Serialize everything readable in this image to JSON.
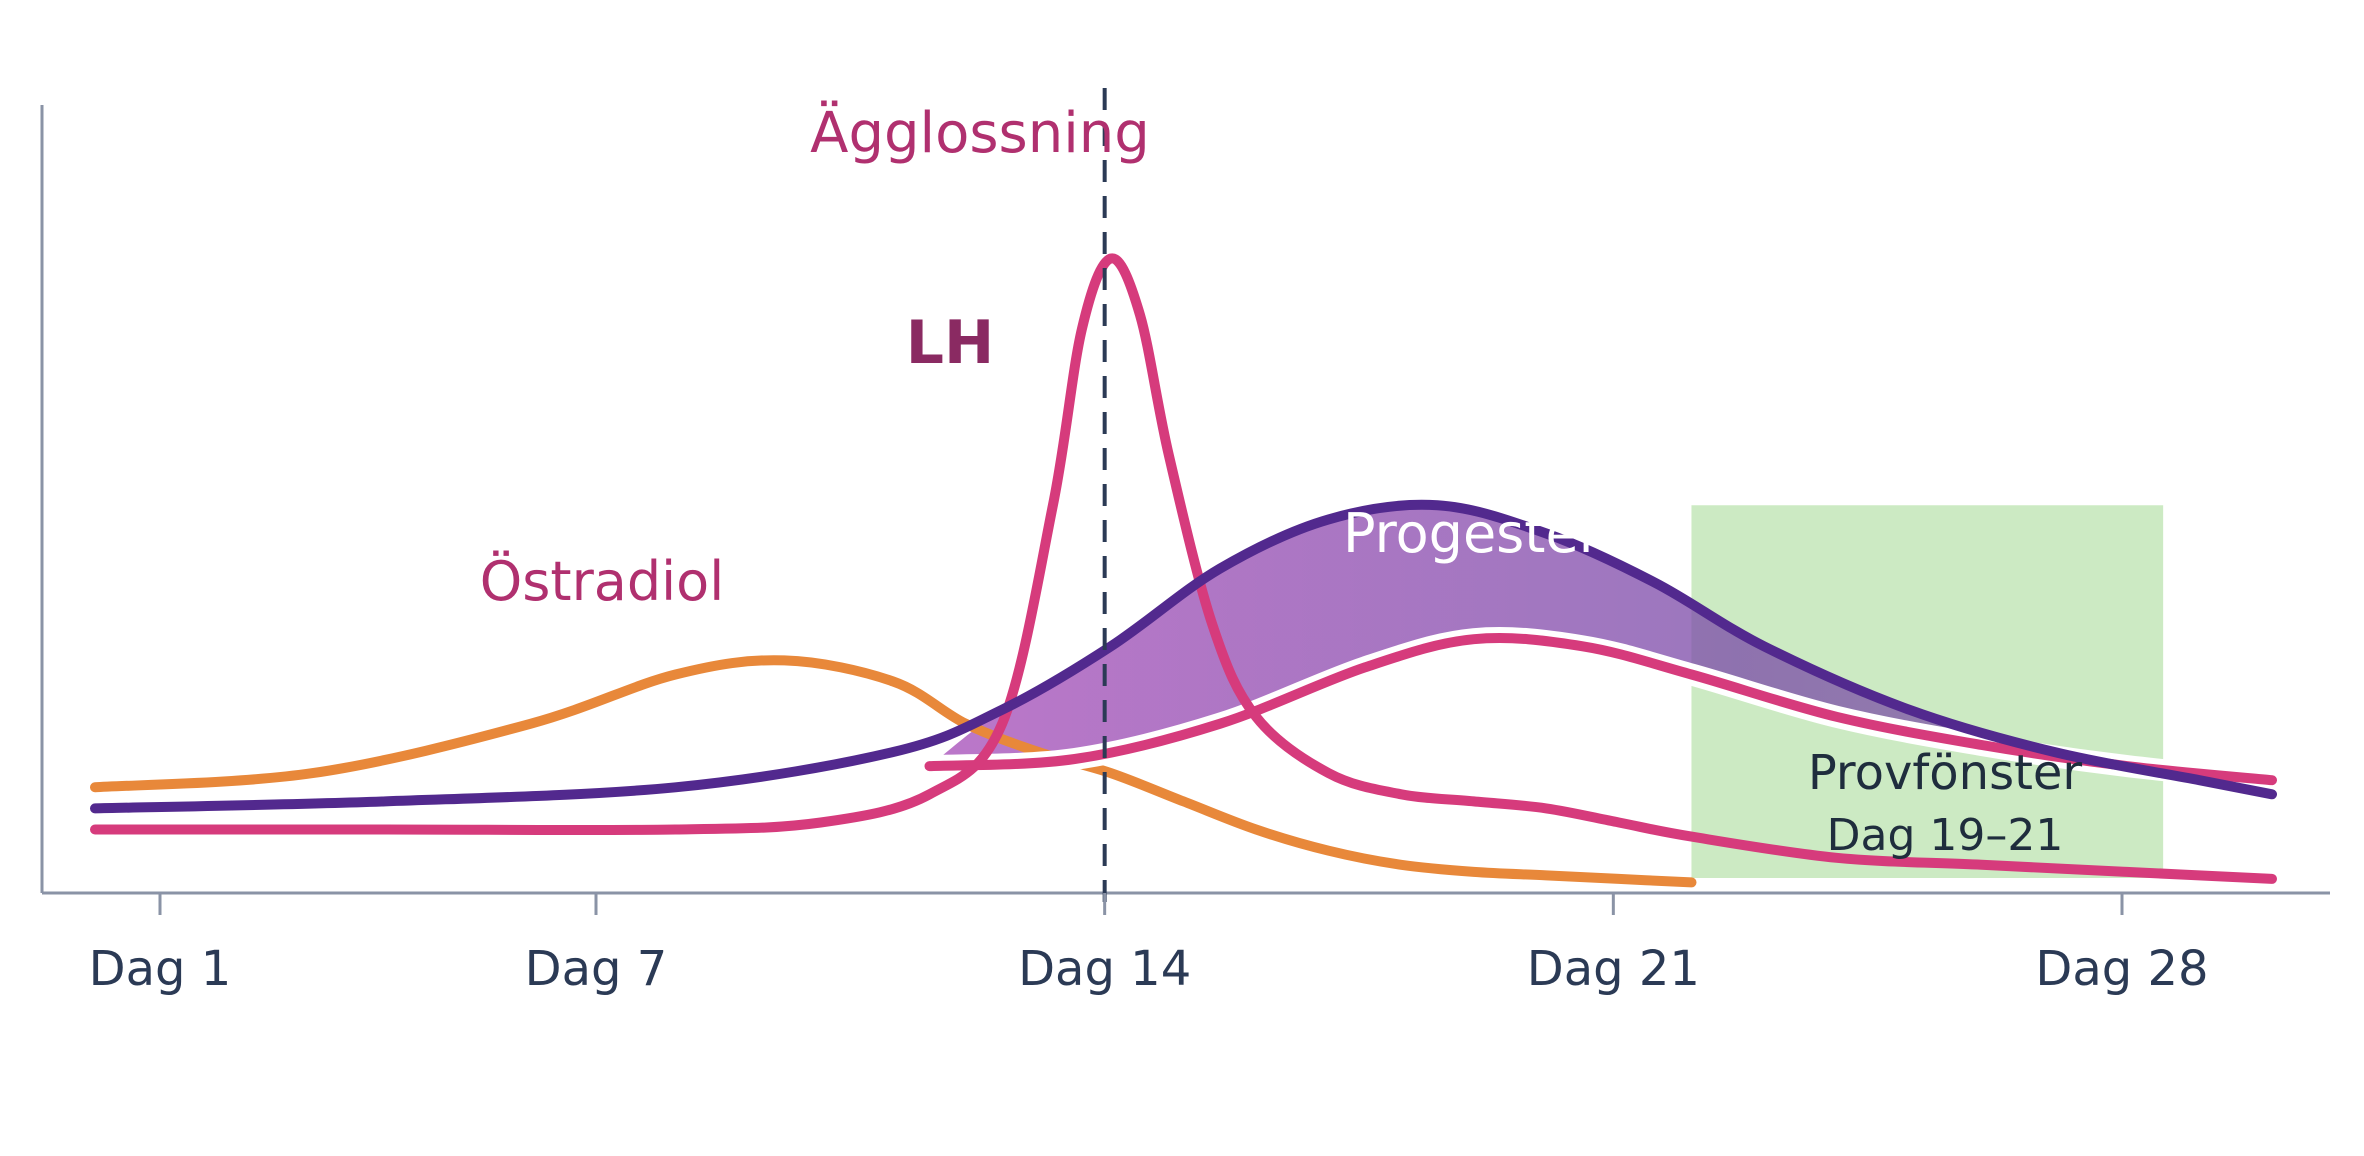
{
  "chart_data": {
    "type": "line",
    "title": "",
    "xlabel": "",
    "ylabel": "",
    "categories": [
      "Dag 1",
      "Dag 7",
      "Dag 14",
      "Dag 21",
      "Dag 28"
    ],
    "xlim": [
      0.1,
      30.2
    ],
    "ylim": [
      0,
      100
    ],
    "grid": false,
    "series": [
      {
        "name": "Östradiol",
        "color": "#e8883a",
        "x": [
          0,
          3,
          6,
          8,
          9.5,
          11,
          12,
          13,
          14,
          15,
          16,
          17,
          18,
          19,
          20,
          21,
          22
        ],
        "y": [
          15,
          17,
          24,
          31,
          33,
          30,
          24,
          20,
          17,
          13,
          9,
          6,
          4,
          3,
          2.5,
          2,
          1.5
        ]
      },
      {
        "name": "LH",
        "color": "#d63b7c",
        "x": [
          0,
          4,
          8,
          10,
          11.5,
          12.5,
          13.2,
          13.6,
          14,
          14.4,
          14.8,
          15.4,
          16,
          17,
          18,
          19,
          20,
          21,
          22,
          24,
          26,
          28,
          30
        ],
        "y": [
          9,
          9,
          9,
          10,
          14,
          24,
          55,
          80,
          90,
          82,
          62,
          38,
          25,
          17,
          14,
          13,
          12,
          10,
          8,
          5,
          4,
          3,
          2
        ]
      },
      {
        "name": "Progesteron",
        "color": "#52298e",
        "x": [
          0,
          4,
          8,
          11,
          12.5,
          14,
          15.5,
          17,
          18.5,
          20,
          21.5,
          23,
          25,
          27,
          29,
          30
        ],
        "y": [
          12,
          13,
          15,
          20,
          26,
          35,
          46,
          53,
          55,
          51,
          44,
          35,
          26,
          20,
          16,
          14
        ]
      },
      {
        "name": "",
        "color": "#d63b7c",
        "x": [
          11.5,
          13.5,
          15.5,
          17.5,
          19,
          20.5,
          22,
          24,
          26,
          28,
          30
        ],
        "y": [
          18,
          19,
          24,
          32,
          36,
          35,
          31,
          25,
          21,
          18,
          16
        ]
      }
    ],
    "markers": {
      "ovulation_day": 14,
      "ovulation_label": "Ägglossning",
      "window_start": 22,
      "window_end": 28.5,
      "window_top": 55
    }
  },
  "labels": {
    "ostradiol": "Östradiol",
    "lh": "LH",
    "progesteron": "Progesteron",
    "ovulation": "Ägglossning",
    "window_title": "Provfönster",
    "window_days": "Dag 19–21"
  },
  "colors": {
    "estradiol": "#e8883a",
    "lh": "#d63b7c",
    "progesterone": "#52298e",
    "progesterone_fill": "#8a4fb8",
    "window": "#c7e8bd",
    "axis": "#8a93a6",
    "label_magenta": "#b0306f",
    "label_lh": "#8a2a62"
  }
}
